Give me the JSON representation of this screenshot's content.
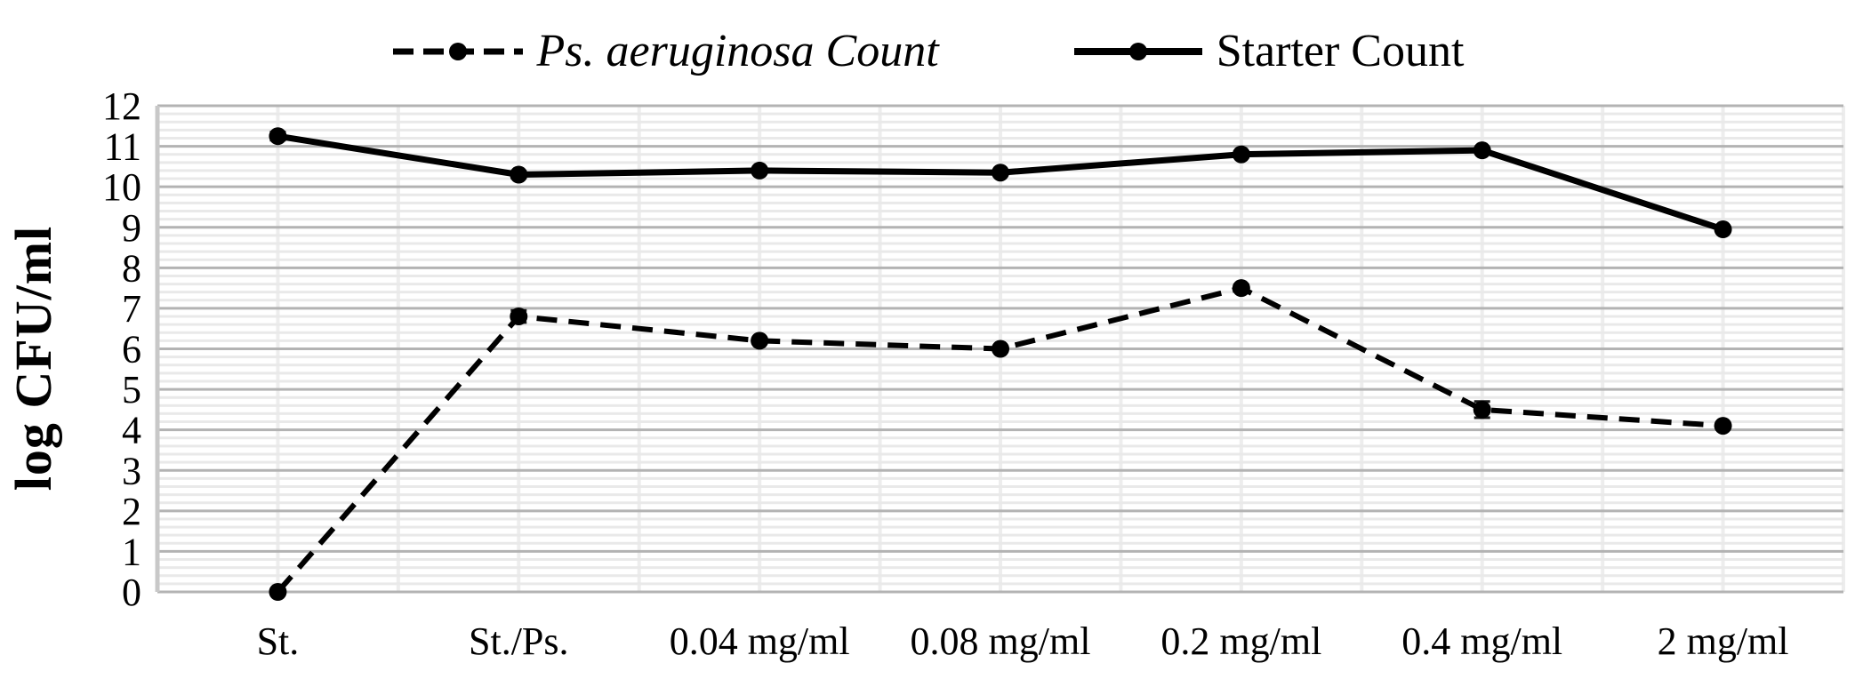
{
  "chart_data": {
    "type": "line",
    "title": "",
    "categories": [
      "St.",
      "St./Ps.",
      "0.04 mg/ml",
      "0.08 mg/ml",
      "0.2 mg/ml",
      "0.4 mg/ml",
      "2 mg/ml"
    ],
    "series": [
      {
        "name": "Ps. aeruginosa Count",
        "line_style": "dashed",
        "italic_label": true,
        "marker": "circle",
        "color": "#000000",
        "values": [
          0,
          6.8,
          6.2,
          6.0,
          7.5,
          4.5,
          4.1
        ],
        "errors": [
          0,
          0.15,
          0.06,
          0.05,
          0.08,
          0.2,
          0.07
        ]
      },
      {
        "name": "Starter Count",
        "line_style": "solid",
        "italic_label": false,
        "marker": "circle",
        "color": "#000000",
        "values": [
          11.25,
          10.3,
          10.4,
          10.35,
          10.8,
          10.9,
          8.95
        ],
        "errors": [
          0.1,
          0.08,
          0.06,
          0.05,
          0.07,
          0.05,
          0.06
        ]
      }
    ],
    "xlabel": "",
    "ylabel": "log CFU/ml",
    "ylim": [
      0,
      12
    ],
    "ytick_step": 1,
    "y_minor_step": 0.2,
    "grid": true,
    "legend_position": "top",
    "colors": {
      "background": "#ffffff",
      "major_grid": "#b3b3b3",
      "minor_grid": "#e9e9e9",
      "vertical_grid": "#ededed",
      "axis_line": "#c8c8c8",
      "text": "#000000"
    }
  }
}
